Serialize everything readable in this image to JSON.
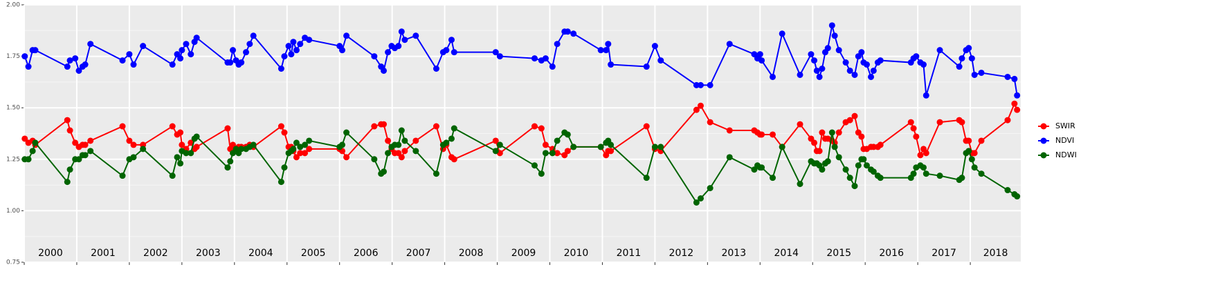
{
  "chart_data": {
    "type": "line",
    "x": [
      2000.01,
      2000.08,
      2000.16,
      2000.21,
      2000.82,
      2000.87,
      2000.97,
      2001.04,
      2001.11,
      2001.16,
      2001.26,
      2001.87,
      2002.0,
      2002.08,
      2002.26,
      2002.82,
      2002.91,
      2002.97,
      2003.0,
      2003.08,
      2003.17,
      2003.24,
      2003.28,
      2003.87,
      2003.92,
      2003.97,
      2004.03,
      2004.08,
      2004.13,
      2004.22,
      2004.29,
      2004.36,
      2004.89,
      2004.95,
      2005.03,
      2005.08,
      2005.12,
      2005.18,
      2005.25,
      2005.34,
      2005.42,
      2006.0,
      2006.05,
      2006.13,
      2006.66,
      2006.79,
      2006.84,
      2006.92,
      2006.99,
      2007.05,
      2007.12,
      2007.18,
      2007.24,
      2007.45,
      2007.84,
      2007.97,
      2008.03,
      2008.13,
      2008.18,
      2008.97,
      2009.05,
      2009.71,
      2009.84,
      2009.92,
      2010.05,
      2010.14,
      2010.28,
      2010.34,
      2010.45,
      2010.97,
      2011.07,
      2011.11,
      2011.16,
      2011.84,
      2012.0,
      2012.11,
      2012.79,
      2012.87,
      2013.05,
      2013.42,
      2013.89,
      2013.95,
      2014.0,
      2014.03,
      2014.24,
      2014.42,
      2014.76,
      2014.97,
      2015.03,
      2015.08,
      2015.13,
      2015.18,
      2015.24,
      2015.29,
      2015.37,
      2015.42,
      2015.5,
      2015.63,
      2015.71,
      2015.8,
      2015.87,
      2015.93,
      2015.97,
      2016.03,
      2016.11,
      2016.16,
      2016.24,
      2016.29,
      2016.87,
      2016.92,
      2016.97,
      2017.05,
      2017.11,
      2017.16,
      2017.42,
      2017.79,
      2017.84,
      2017.92,
      2017.97,
      2018.03,
      2018.08,
      2018.21,
      2018.71,
      2018.84,
      2018.89
    ],
    "series": [
      {
        "name": "SWIR",
        "color": "#ff0000",
        "values": [
          1.35,
          1.33,
          1.34,
          1.32,
          1.44,
          1.39,
          1.33,
          1.31,
          1.32,
          1.32,
          1.34,
          1.41,
          1.34,
          1.32,
          1.32,
          1.41,
          1.37,
          1.38,
          1.32,
          1.3,
          1.33,
          1.3,
          1.31,
          1.4,
          1.3,
          1.32,
          1.3,
          1.31,
          1.31,
          1.31,
          1.32,
          1.31,
          1.41,
          1.38,
          1.31,
          1.31,
          1.29,
          1.26,
          1.28,
          1.28,
          1.3,
          1.3,
          1.29,
          1.26,
          1.41,
          1.42,
          1.42,
          1.34,
          1.3,
          1.28,
          1.28,
          1.26,
          1.29,
          1.34,
          1.41,
          1.3,
          1.32,
          1.26,
          1.25,
          1.34,
          1.28,
          1.41,
          1.4,
          1.32,
          1.3,
          1.28,
          1.27,
          1.29,
          1.31,
          1.31,
          1.27,
          1.29,
          1.29,
          1.41,
          1.3,
          1.29,
          1.49,
          1.51,
          1.43,
          1.39,
          1.39,
          1.38,
          1.37,
          1.37,
          1.37,
          1.31,
          1.42,
          1.35,
          1.33,
          1.29,
          1.29,
          1.38,
          1.35,
          1.35,
          1.34,
          1.33,
          1.38,
          1.43,
          1.44,
          1.46,
          1.38,
          1.36,
          1.3,
          1.3,
          1.31,
          1.31,
          1.31,
          1.32,
          1.43,
          1.4,
          1.36,
          1.27,
          1.3,
          1.28,
          1.43,
          1.44,
          1.43,
          1.34,
          1.34,
          1.28,
          1.28,
          1.34,
          1.44,
          1.52,
          1.49
        ]
      },
      {
        "name": "NDVI",
        "color": "#0000ff",
        "values": [
          1.75,
          1.7,
          1.78,
          1.78,
          1.7,
          1.73,
          1.74,
          1.68,
          1.7,
          1.71,
          1.81,
          1.73,
          1.76,
          1.71,
          1.8,
          1.71,
          1.76,
          1.74,
          1.78,
          1.81,
          1.76,
          1.82,
          1.84,
          1.72,
          1.72,
          1.78,
          1.73,
          1.71,
          1.72,
          1.77,
          1.81,
          1.85,
          1.69,
          1.75,
          1.8,
          1.76,
          1.82,
          1.78,
          1.81,
          1.84,
          1.83,
          1.8,
          1.78,
          1.85,
          1.75,
          1.7,
          1.68,
          1.77,
          1.8,
          1.79,
          1.8,
          1.87,
          1.83,
          1.85,
          1.69,
          1.77,
          1.78,
          1.83,
          1.77,
          1.77,
          1.75,
          1.74,
          1.73,
          1.74,
          1.7,
          1.81,
          1.87,
          1.87,
          1.86,
          1.78,
          1.78,
          1.81,
          1.71,
          1.7,
          1.8,
          1.73,
          1.61,
          1.61,
          1.61,
          1.81,
          1.76,
          1.74,
          1.76,
          1.73,
          1.65,
          1.86,
          1.66,
          1.76,
          1.73,
          1.68,
          1.65,
          1.69,
          1.77,
          1.79,
          1.9,
          1.85,
          1.78,
          1.72,
          1.68,
          1.66,
          1.75,
          1.77,
          1.72,
          1.71,
          1.65,
          1.68,
          1.72,
          1.73,
          1.72,
          1.74,
          1.75,
          1.72,
          1.71,
          1.56,
          1.78,
          1.7,
          1.74,
          1.78,
          1.79,
          1.74,
          1.66,
          1.67,
          1.65,
          1.64,
          1.56
        ]
      },
      {
        "name": "NDWI",
        "color": "#006400",
        "values": [
          1.25,
          1.25,
          1.29,
          1.33,
          1.14,
          1.2,
          1.25,
          1.25,
          1.27,
          1.27,
          1.29,
          1.17,
          1.25,
          1.26,
          1.3,
          1.17,
          1.26,
          1.23,
          1.29,
          1.28,
          1.28,
          1.35,
          1.36,
          1.21,
          1.24,
          1.28,
          1.3,
          1.28,
          1.3,
          1.3,
          1.31,
          1.32,
          1.14,
          1.21,
          1.28,
          1.29,
          1.3,
          1.33,
          1.31,
          1.32,
          1.34,
          1.31,
          1.32,
          1.38,
          1.25,
          1.18,
          1.19,
          1.28,
          1.31,
          1.32,
          1.32,
          1.39,
          1.34,
          1.29,
          1.18,
          1.32,
          1.33,
          1.35,
          1.4,
          1.29,
          1.32,
          1.22,
          1.18,
          1.28,
          1.28,
          1.34,
          1.38,
          1.37,
          1.31,
          1.31,
          1.33,
          1.34,
          1.32,
          1.16,
          1.31,
          1.31,
          1.04,
          1.06,
          1.11,
          1.26,
          1.2,
          1.22,
          1.21,
          1.21,
          1.16,
          1.31,
          1.13,
          1.24,
          1.23,
          1.23,
          1.22,
          1.2,
          1.23,
          1.24,
          1.38,
          1.31,
          1.26,
          1.2,
          1.16,
          1.12,
          1.22,
          1.25,
          1.25,
          1.22,
          1.2,
          1.19,
          1.17,
          1.16,
          1.16,
          1.18,
          1.21,
          1.22,
          1.21,
          1.18,
          1.17,
          1.15,
          1.16,
          1.28,
          1.29,
          1.25,
          1.21,
          1.18,
          1.1,
          1.08,
          1.07
        ]
      }
    ],
    "xlim": [
      2000,
      2018.96
    ],
    "xticks": [
      {
        "value": 2000,
        "label": "2000"
      },
      {
        "value": 2001,
        "label": "2001"
      },
      {
        "value": 2002,
        "label": "2002"
      },
      {
        "value": 2003,
        "label": "2003"
      },
      {
        "value": 2004,
        "label": "2004"
      },
      {
        "value": 2005,
        "label": "2005"
      },
      {
        "value": 2006,
        "label": "2006"
      },
      {
        "value": 2007,
        "label": "2007"
      },
      {
        "value": 2008,
        "label": "2008"
      },
      {
        "value": 2009,
        "label": "2009"
      },
      {
        "value": 2010,
        "label": "2010"
      },
      {
        "value": 2011,
        "label": "2011"
      },
      {
        "value": 2012,
        "label": "2012"
      },
      {
        "value": 2013,
        "label": "2013"
      },
      {
        "value": 2014,
        "label": "2014"
      },
      {
        "value": 2015,
        "label": "2015"
      },
      {
        "value": 2016,
        "label": "2016"
      },
      {
        "value": 2017,
        "label": "2017"
      },
      {
        "value": 2018,
        "label": "2018"
      }
    ],
    "ylim": [
      0.75,
      2.0
    ],
    "yticks": [
      {
        "value": 0.75,
        "label": "0.75"
      },
      {
        "value": 1,
        "label": "1.00"
      },
      {
        "value": 1.25,
        "label": "1.25"
      },
      {
        "value": 1.5,
        "label": "1.50"
      },
      {
        "value": 1.75,
        "label": "1.75"
      },
      {
        "value": 2,
        "label": "2.00"
      }
    ],
    "grid": true
  }
}
